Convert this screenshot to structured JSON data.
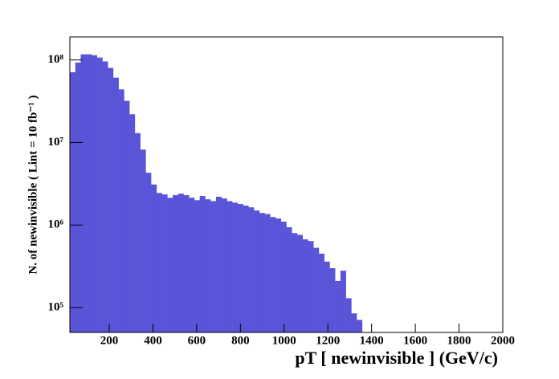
{
  "chart_data": {
    "type": "histogram",
    "xlabel": "pT [ newinvisible ] (GeV/c)",
    "ylabel": "N. of newinvisible ( Lint = 10 fb⁻¹ )",
    "bins": [
      20,
      44.75,
      69.5,
      94.25,
      119,
      143.75,
      168.5,
      193.25,
      218,
      242.75,
      267.5,
      292.25,
      317,
      341.75,
      366.5,
      391.25,
      416,
      440.75,
      465.5,
      490.25,
      515,
      539.75,
      564.5,
      589.25,
      614,
      638.75,
      663.5,
      688.25,
      713,
      737.75,
      762.5,
      787.25,
      812,
      836.75,
      861.5,
      886.25,
      911,
      935.75,
      960.5,
      985.25,
      1010,
      1034.75,
      1059.5,
      1084.25,
      1109,
      1133.75,
      1158.5,
      1183.25,
      1208,
      1232.75,
      1257.5,
      1282.25,
      1307,
      1331.75,
      1356.5,
      1381.25,
      1406,
      1430.75,
      1455.5,
      1480.25,
      1505,
      1529.75,
      1554.5,
      1579.25,
      1604,
      1628.75,
      1653.5,
      1678.25,
      1703,
      1727.75,
      1752.5,
      1777.25,
      1802,
      1826.75,
      1851.5,
      1876.25,
      1901,
      1925.75,
      1950.5,
      1975.25,
      2000
    ],
    "values": [
      71000000,
      93000000,
      117000000,
      117000000,
      114000000,
      107000000,
      96000000,
      80000000,
      61000000,
      44000000,
      32000000,
      22000000,
      13000000,
      8200000,
      4300000,
      3100000,
      2450000,
      2350000,
      2140000,
      2300000,
      2400000,
      2300000,
      2140000,
      2000000,
      2250000,
      2050000,
      1950000,
      2200000,
      2100000,
      1950000,
      1870000,
      1800000,
      1720000,
      1640000,
      1500000,
      1400000,
      1360000,
      1250000,
      1200000,
      1100000,
      940000,
      800000,
      760000,
      670000,
      640000,
      530000,
      450000,
      360000,
      300000,
      210000,
      280000,
      130000,
      85000,
      71000,
      0,
      0,
      0,
      0,
      0,
      0,
      0,
      0,
      0,
      0,
      0,
      0,
      0,
      0,
      0,
      0,
      0,
      0,
      0,
      0,
      0,
      0,
      0,
      0,
      0,
      0
    ],
    "color": "#5a55d8",
    "xlim": [
      20,
      2000
    ],
    "ylim": [
      50000,
      190000000
    ],
    "yscale": "log",
    "xticks": [
      200,
      400,
      600,
      800,
      1000,
      1200,
      1400,
      1600,
      1800,
      2000
    ],
    "yticks": [
      {
        "value": 100000,
        "label": "10⁵"
      },
      {
        "value": 1000000,
        "label": "10⁶"
      },
      {
        "value": 10000000,
        "label": "10⁷"
      },
      {
        "value": 100000000,
        "label": "10⁸"
      }
    ]
  }
}
